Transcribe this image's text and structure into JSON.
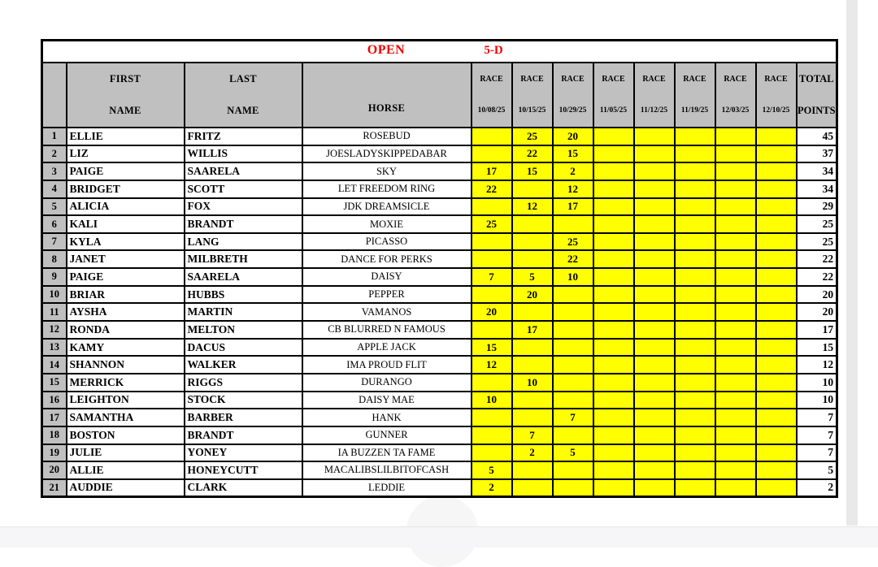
{
  "page": {
    "title": "OPEN",
    "division": "5-D",
    "colors": {
      "accent_red": "#f00000",
      "header_gray": "#c0c0c0",
      "cell_yellow": "#ffff00",
      "border_black": "#000000"
    }
  },
  "table": {
    "columns": {
      "first": {
        "line1": "FIRST",
        "line2": "NAME"
      },
      "last": {
        "line1": "LAST",
        "line2": "NAME"
      },
      "horse": {
        "label": "HORSE"
      },
      "races": [
        {
          "label": "RACE",
          "date": "10/08/25"
        },
        {
          "label": "RACE",
          "date": "10/15/25"
        },
        {
          "label": "RACE",
          "date": "10/29/25"
        },
        {
          "label": "RACE",
          "date": "11/05/25"
        },
        {
          "label": "RACE",
          "date": "11/12/25"
        },
        {
          "label": "RACE",
          "date": "11/19/25"
        },
        {
          "label": "RACE",
          "date": "12/03/25"
        },
        {
          "label": "RACE",
          "date": "12/10/25"
        }
      ],
      "total": {
        "line1": "TOTAL",
        "line2": "POINTS"
      }
    },
    "rows": [
      {
        "num": "1",
        "first": "ELLIE",
        "last": "FRITZ",
        "horse": "ROSEBUD",
        "scores": [
          "",
          "25",
          "20",
          "",
          "",
          "",
          "",
          ""
        ],
        "total": "45"
      },
      {
        "num": "2",
        "first": "LIZ",
        "last": "WILLIS",
        "horse": "JOESLADYSKIPPEDABAR",
        "scores": [
          "",
          "22",
          "15",
          "",
          "",
          "",
          "",
          ""
        ],
        "total": "37"
      },
      {
        "num": "3",
        "first": "PAIGE",
        "last": "SAARELA",
        "horse": "SKY",
        "scores": [
          "17",
          "15",
          "2",
          "",
          "",
          "",
          "",
          ""
        ],
        "total": "34"
      },
      {
        "num": "4",
        "first": "BRIDGET",
        "last": "SCOTT",
        "horse": "LET FREEDOM RING",
        "scores": [
          "22",
          "",
          "12",
          "",
          "",
          "",
          "",
          ""
        ],
        "total": "34"
      },
      {
        "num": "5",
        "first": "ALICIA",
        "last": "FOX",
        "horse": "JDK DREAMSICLE",
        "scores": [
          "",
          "12",
          "17",
          "",
          "",
          "",
          "",
          ""
        ],
        "total": "29"
      },
      {
        "num": "6",
        "first": "KALI",
        "last": "BRANDT",
        "horse": "MOXIE",
        "scores": [
          "25",
          "",
          "",
          "",
          "",
          "",
          "",
          ""
        ],
        "total": "25"
      },
      {
        "num": "7",
        "first": "KYLA",
        "last": "LANG",
        "horse": "PICASSO",
        "scores": [
          "",
          "",
          "25",
          "",
          "",
          "",
          "",
          ""
        ],
        "total": "25"
      },
      {
        "num": "8",
        "first": "JANET",
        "last": "MILBRETH",
        "horse": "DANCE FOR PERKS",
        "scores": [
          "",
          "",
          "22",
          "",
          "",
          "",
          "",
          ""
        ],
        "total": "22"
      },
      {
        "num": "9",
        "first": "PAIGE",
        "last": "SAARELA",
        "horse": "DAISY",
        "scores": [
          "7",
          "5",
          "10",
          "",
          "",
          "",
          "",
          ""
        ],
        "total": "22"
      },
      {
        "num": "10",
        "first": "BRIAR",
        "last": "HUBBS",
        "horse": "PEPPER",
        "scores": [
          "",
          "20",
          "",
          "",
          "",
          "",
          "",
          ""
        ],
        "total": "20"
      },
      {
        "num": "11",
        "first": "AYSHA",
        "last": "MARTIN",
        "horse": "VAMANOS",
        "scores": [
          "20",
          "",
          "",
          "",
          "",
          "",
          "",
          ""
        ],
        "total": "20"
      },
      {
        "num": "12",
        "first": "RONDA",
        "last": "MELTON",
        "horse": "CB BLURRED N FAMOUS",
        "scores": [
          "",
          "17",
          "",
          "",
          "",
          "",
          "",
          ""
        ],
        "total": "17"
      },
      {
        "num": "13",
        "first": "KAMY",
        "last": "DACUS",
        "horse": "APPLE JACK",
        "scores": [
          "15",
          "",
          "",
          "",
          "",
          "",
          "",
          ""
        ],
        "total": "15"
      },
      {
        "num": "14",
        "first": "SHANNON",
        "last": "WALKER",
        "horse": "IMA PROUD FLIT",
        "scores": [
          "12",
          "",
          "",
          "",
          "",
          "",
          "",
          ""
        ],
        "total": "12"
      },
      {
        "num": "15",
        "first": "MERRICK",
        "last": "RIGGS",
        "horse": "DURANGO",
        "scores": [
          "",
          "10",
          "",
          "",
          "",
          "",
          "",
          ""
        ],
        "total": "10"
      },
      {
        "num": "16",
        "first": "LEIGHTON",
        "last": "STOCK",
        "horse": "DAISY MAE",
        "scores": [
          "10",
          "",
          "",
          "",
          "",
          "",
          "",
          ""
        ],
        "total": "10"
      },
      {
        "num": "17",
        "first": "SAMANTHA",
        "last": "BARBER",
        "horse": "HANK",
        "scores": [
          "",
          "",
          "7",
          "",
          "",
          "",
          "",
          ""
        ],
        "total": "7"
      },
      {
        "num": "18",
        "first": "BOSTON",
        "last": "BRANDT",
        "horse": "GUNNER",
        "scores": [
          "",
          "7",
          "",
          "",
          "",
          "",
          "",
          ""
        ],
        "total": "7"
      },
      {
        "num": "19",
        "first": "JULIE",
        "last": "YONEY",
        "horse": "IA BUZZEN TA FAME",
        "scores": [
          "",
          "2",
          "5",
          "",
          "",
          "",
          "",
          ""
        ],
        "total": "7"
      },
      {
        "num": "20",
        "first": "ALLIE",
        "last": "HONEYCUTT",
        "horse": "MACALIBSLILBITOFCASH",
        "scores": [
          "5",
          "",
          "",
          "",
          "",
          "",
          "",
          ""
        ],
        "total": "5"
      },
      {
        "num": "21",
        "first": "AUDDIE",
        "last": "CLARK",
        "horse": "LEDDIE",
        "scores": [
          "2",
          "",
          "",
          "",
          "",
          "",
          "",
          ""
        ],
        "total": "2"
      }
    ]
  }
}
